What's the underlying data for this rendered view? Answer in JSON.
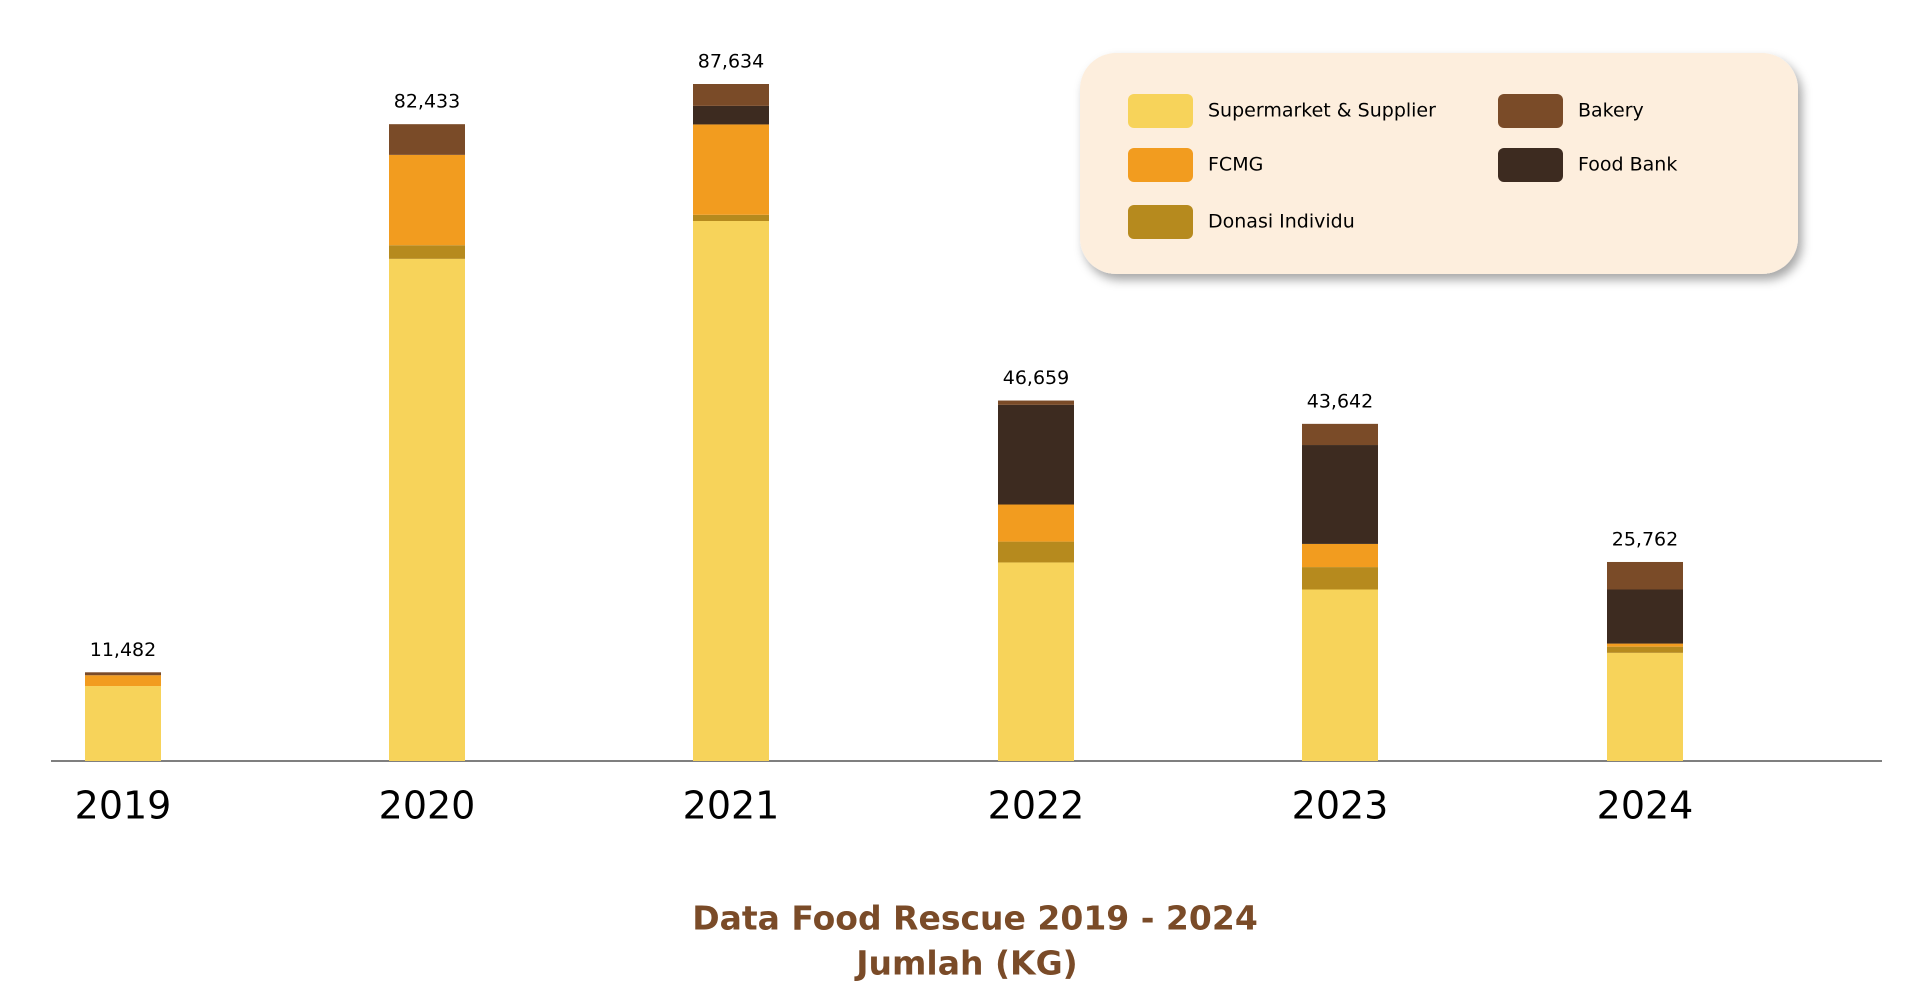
{
  "chart_data": {
    "type": "stacked-bar",
    "title": "Data Food Rescue 2019 -  2024",
    "subtitle": "Jumlah (KG)",
    "categories": [
      "2019",
      "2020",
      "2021",
      "2022",
      "2023",
      "2024"
    ],
    "series": [
      {
        "name": "Supermarket & Supplier",
        "color": "#f7d35a",
        "values": [
          9700,
          65000,
          69900,
          25700,
          22200,
          14000
        ]
      },
      {
        "name": "Donasi Individu",
        "color": "#b68a1e",
        "values": [
          0,
          1760,
          800,
          2700,
          2900,
          800
        ]
      },
      {
        "name": "FCMG",
        "color": "#f29c1f",
        "values": [
          1400,
          11700,
          11700,
          4800,
          3000,
          400
        ]
      },
      {
        "name": "Food Bank",
        "color": "#3d2b20",
        "values": [
          0,
          0,
          2400,
          12900,
          12800,
          7000
        ]
      },
      {
        "name": "Bakery",
        "color": "#7a4b28",
        "values": [
          382,
          3973,
          2834,
          559,
          2742,
          3562
        ]
      }
    ],
    "totals": [
      11482,
      82433,
      87634,
      46659,
      43642,
      25762
    ],
    "total_labels": [
      "11,482",
      "82,433",
      "87,634",
      "46,659",
      "43,642",
      "25,762"
    ]
  }
}
